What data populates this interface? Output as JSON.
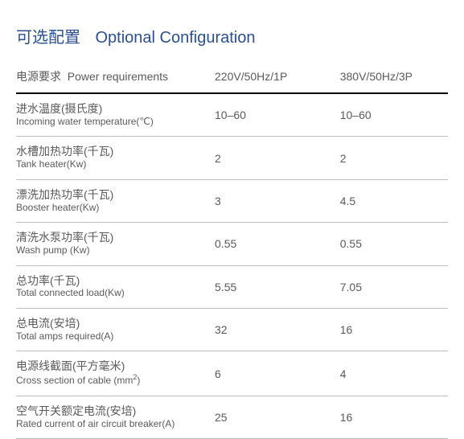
{
  "title": {
    "cn": "可选配置",
    "en": "Optional Configuration"
  },
  "columns": {
    "label_cn": "电源要求",
    "label_en": "Power requirements",
    "c1": "220V/50Hz/1P",
    "c2": "380V/50Hz/3P"
  },
  "rows": [
    {
      "cn": "进水温度(摄氏度)",
      "en": "Incoming water  temperature(℃)",
      "v1": "10–60",
      "v2": "10–60"
    },
    {
      "cn": "水槽加热功率(千瓦)",
      "en": "Tank heater(Kw)",
      "v1": "2",
      "v2": "2"
    },
    {
      "cn": "漂洗加热功率(千瓦)",
      "en": "Booster heater(Kw)",
      "v1": "3",
      "v2": "4.5"
    },
    {
      "cn": "清洗水泵功率(千瓦)",
      "en": "Wash pump (Kw)",
      "v1": "0.55",
      "v2": "0.55"
    },
    {
      "cn": "总功率(千瓦)",
      "en": "Total connected load(Kw)",
      "v1": "5.55",
      "v2": "7.05"
    },
    {
      "cn": "总电流(安培)",
      "en": "Total amps required(A)",
      "v1": "32",
      "v2": "16"
    },
    {
      "cn": "电源线截面(平方毫米)",
      "en_html": "Cross section of cable (mm<sup>2</sup>)",
      "v1": "6",
      "v2": "4"
    },
    {
      "cn": "空气开关额定电流(安培)",
      "en": "Rated current of air circuit breaker(A)",
      "v1": "25",
      "v2": "16"
    }
  ],
  "colors": {
    "title": "#2b4f8f",
    "text": "#5a5a5a",
    "header_border": "#000000",
    "row_border": "#bfbfbf",
    "background": "#ffffff"
  },
  "typography": {
    "title_fontsize": 20,
    "header_fontsize": 14,
    "cell_fontsize": 14,
    "sub_fontsize": 12,
    "font_family": "Arial, Microsoft YaHei, sans-serif"
  }
}
